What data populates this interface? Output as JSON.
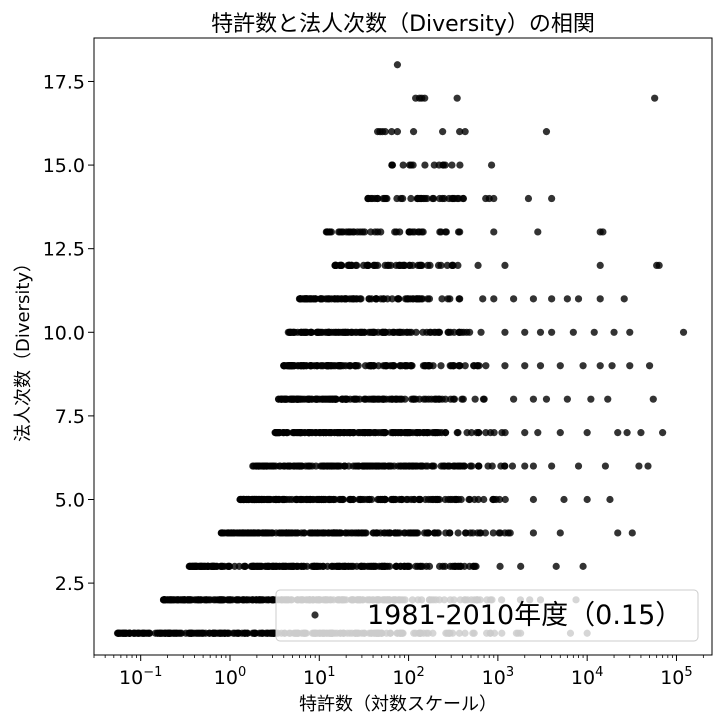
{
  "chart_data": {
    "type": "scatter",
    "title": "特許数と法人次数（Diversity）の相関",
    "xlabel": "特許数（対数スケール）",
    "ylabel": "法人次数（Diversity）",
    "x_scale": "log",
    "xlim": [
      0.03,
      250000
    ],
    "ylim": [
      0.35,
      18.8
    ],
    "x_ticks": [
      {
        "base": "10",
        "exp": "−1"
      },
      {
        "base": "10",
        "exp": "0"
      },
      {
        "base": "10",
        "exp": "1"
      },
      {
        "base": "10",
        "exp": "2"
      },
      {
        "base": "10",
        "exp": "3"
      },
      {
        "base": "10",
        "exp": "4"
      },
      {
        "base": "10",
        "exp": "5"
      }
    ],
    "x_tick_values": [
      0.1,
      1,
      10,
      100,
      1000,
      10000,
      100000
    ],
    "y_ticks": [
      "2.5",
      "5.0",
      "7.5",
      "10.0",
      "12.5",
      "15.0",
      "17.5"
    ],
    "y_tick_values": [
      2.5,
      5.0,
      7.5,
      10.0,
      12.5,
      15.0,
      17.5
    ],
    "grid": false,
    "legend_position": "lower-right",
    "point_color": "#000000",
    "point_opacity": 0.8,
    "series": [
      {
        "name": "1981-2010年度（0.15）",
        "rows": [
          {
            "y": 1,
            "x_min": 0.055,
            "x_max": 6500,
            "n": 260,
            "outliers": [
              10000
            ]
          },
          {
            "y": 2,
            "x_min": 0.18,
            "x_max": 3000,
            "n": 240,
            "outliers": [
              7500
            ]
          },
          {
            "y": 3,
            "x_min": 0.35,
            "x_max": 1800,
            "n": 220,
            "outliers": [
              4500,
              9000
            ]
          },
          {
            "y": 4,
            "x_min": 0.8,
            "x_max": 2500,
            "n": 210,
            "outliers": [
              5000,
              22000,
              32000
            ]
          },
          {
            "y": 5,
            "x_min": 1.3,
            "x_max": 2500,
            "n": 200,
            "outliers": [
              5500,
              10000,
              18000
            ]
          },
          {
            "y": 6,
            "x_min": 1.8,
            "x_max": 2000,
            "n": 180,
            "outliers": [
              2500,
              4000,
              8000,
              16000,
              38000,
              48000
            ]
          },
          {
            "y": 7,
            "x_min": 3.2,
            "x_max": 2000,
            "n": 170,
            "outliers": [
              2800,
              5000,
              10000,
              22000,
              28000,
              40000,
              70000
            ]
          },
          {
            "y": 8,
            "x_min": 3.5,
            "x_max": 1500,
            "n": 150,
            "outliers": [
              2500,
              3500,
              6000,
              11000,
              17000,
              55000
            ]
          },
          {
            "y": 9,
            "x_min": 4.0,
            "x_max": 1200,
            "n": 140,
            "outliers": [
              2000,
              3000,
              5000,
              9000,
              14000,
              19000,
              30000,
              50000
            ]
          },
          {
            "y": 10,
            "x_min": 4.5,
            "x_max": 1200,
            "n": 120,
            "outliers": [
              2000,
              3000,
              4000,
              7000,
              12000,
              20000,
              30000,
              120000
            ]
          },
          {
            "y": 11,
            "x_min": 6.0,
            "x_max": 900,
            "n": 100,
            "outliers": [
              1500,
              2500,
              4000,
              6000,
              8000,
              14000,
              26000
            ]
          },
          {
            "y": 12,
            "x_min": 15,
            "x_max": 600,
            "n": 60,
            "outliers": [
              1200,
              14000,
              60000,
              64000
            ]
          },
          {
            "y": 13,
            "x_min": 12,
            "x_max": 900,
            "n": 45,
            "outliers": [
              2800,
              14000,
              15000
            ]
          },
          {
            "y": 14,
            "x_min": 35,
            "x_max": 800,
            "n": 40,
            "outliers": [
              900,
              2200,
              4000
            ]
          },
          {
            "y": 15,
            "x_min": 65,
            "x_max": 850,
            "n": 16,
            "outliers": []
          },
          {
            "y": 16,
            "x_min": 45,
            "x_max": 430,
            "n": 10,
            "outliers": [
              3500
            ]
          },
          {
            "y": 17,
            "x_min": 120,
            "x_max": 350,
            "n": 5,
            "outliers": [
              57000
            ]
          },
          {
            "y": 18,
            "x_min": 75,
            "x_max": 75,
            "n": 1,
            "outliers": []
          }
        ]
      }
    ]
  }
}
